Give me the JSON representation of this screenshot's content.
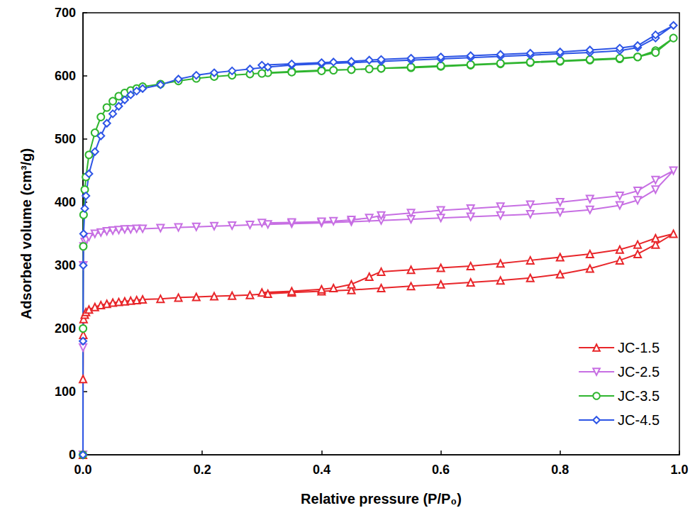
{
  "chart_data": {
    "type": "line",
    "x_label": "Relative pressure (P/P₀)",
    "y_label": "Adsorbed volume (cm³/g)",
    "x": [
      0,
      0.0001,
      0.0005,
      0.001,
      0.003,
      0.005,
      0.01,
      0.02,
      0.03,
      0.04,
      0.05,
      0.06,
      0.07,
      0.08,
      0.09,
      0.1,
      0.13,
      0.16,
      0.19,
      0.22,
      0.25,
      0.28,
      0.31,
      0.35,
      0.4,
      0.45,
      0.5,
      0.55,
      0.6,
      0.65,
      0.7,
      0.75,
      0.8,
      0.85,
      0.9,
      0.93,
      0.96,
      0.99,
      0.96,
      0.93,
      0.9,
      0.85,
      0.8,
      0.75,
      0.7,
      0.65,
      0.6,
      0.55,
      0.5,
      0.48,
      0.45,
      0.42,
      0.4,
      0.35,
      0.3
    ],
    "series": [
      {
        "name": "JC-1.5",
        "color": "#e8262a",
        "marker": "triangle-up",
        "values": [
          0,
          120,
          190,
          215,
          222,
          226,
          230,
          234,
          237,
          239,
          241,
          242,
          243,
          244,
          245,
          246,
          247,
          249,
          250,
          251,
          252,
          253,
          255,
          257,
          259,
          261,
          264,
          267,
          270,
          273,
          276,
          280,
          286,
          295,
          308,
          318,
          333,
          350,
          343,
          333,
          325,
          318,
          313,
          308,
          303,
          299,
          296,
          293,
          290,
          282,
          270,
          264,
          262,
          259,
          257
        ]
      },
      {
        "name": "JC-2.5",
        "color": "#c76fe3",
        "marker": "triangle-down",
        "values": [
          0,
          170,
          300,
          330,
          337,
          340,
          345,
          350,
          352,
          354,
          355,
          356,
          357,
          357,
          358,
          358,
          359,
          360,
          361,
          362,
          363,
          364,
          365,
          366,
          367,
          369,
          371,
          373,
          375,
          377,
          379,
          381,
          384,
          388,
          395,
          403,
          420,
          450,
          435,
          418,
          410,
          405,
          400,
          396,
          393,
          390,
          387,
          383,
          379,
          375,
          372,
          370,
          369,
          368,
          367
        ]
      },
      {
        "name": "JC-3.5",
        "color": "#2fb52f",
        "marker": "circle",
        "values": [
          0,
          200,
          330,
          380,
          420,
          440,
          475,
          510,
          535,
          550,
          560,
          568,
          573,
          577,
          580,
          583,
          587,
          592,
          596,
          599,
          601,
          603,
          605,
          607,
          609,
          610,
          612,
          613,
          615,
          617,
          619,
          621,
          623,
          625,
          627,
          630,
          640,
          660,
          637,
          630,
          628,
          626,
          624,
          622,
          620,
          618,
          616,
          614,
          612,
          611,
          610,
          609,
          608,
          606,
          604
        ]
      },
      {
        "name": "JC-4.5",
        "color": "#2d55e6",
        "marker": "diamond",
        "values": [
          0,
          180,
          300,
          350,
          390,
          410,
          445,
          480,
          505,
          525,
          540,
          552,
          562,
          570,
          576,
          580,
          586,
          595,
          601,
          605,
          608,
          611,
          614,
          617,
          619,
          621,
          623,
          625,
          627,
          629,
          631,
          633,
          635,
          637,
          640,
          645,
          660,
          680,
          665,
          648,
          644,
          641,
          638,
          636,
          634,
          632,
          630,
          628,
          626,
          625,
          623,
          622,
          621,
          619,
          617
        ]
      }
    ],
    "xlim": [
      0,
      1
    ],
    "xticks": [
      {
        "value": 0,
        "label": "0.0"
      },
      0.2,
      0.4,
      0.6,
      0.8,
      {
        "value": 1,
        "label": "1.0"
      }
    ],
    "ylim": [
      0,
      700
    ],
    "yticks": [
      0,
      100,
      200,
      300,
      400,
      500,
      600,
      700
    ],
    "grid": false,
    "legend": "lower right"
  }
}
